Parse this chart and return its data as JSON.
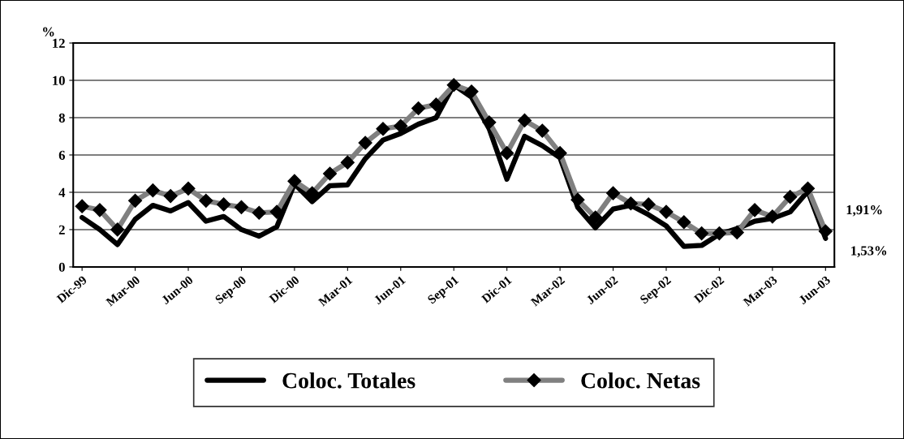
{
  "chart_data": {
    "type": "line",
    "ylabel": "%",
    "categories": [
      "Dic-99",
      null,
      null,
      "Mar-00",
      null,
      null,
      "Jun-00",
      null,
      null,
      "Sep-00",
      null,
      null,
      "Dic-00",
      null,
      null,
      "Mar-01",
      null,
      null,
      "Jun-01",
      null,
      null,
      "Sep-01",
      null,
      null,
      "Dic-01",
      null,
      null,
      "Mar-02",
      null,
      null,
      "Jun-02",
      null,
      null,
      "Sep-02",
      null,
      null,
      "Dic-02",
      null,
      null,
      "Mar-03",
      null,
      null,
      "Jun-03"
    ],
    "series": [
      {
        "name": "Coloc. Totales",
        "color": "#000000",
        "marker": "none",
        "values": [
          2.65,
          2.0,
          1.2,
          2.55,
          3.3,
          3.0,
          3.45,
          2.45,
          2.7,
          2.0,
          1.65,
          2.15,
          4.45,
          3.5,
          4.35,
          4.4,
          5.8,
          6.8,
          7.15,
          7.65,
          8.0,
          9.75,
          9.1,
          7.4,
          4.7,
          7.0,
          6.5,
          5.85,
          3.2,
          2.1,
          3.1,
          3.3,
          2.8,
          2.2,
          1.1,
          1.15,
          1.75,
          2.05,
          2.45,
          2.6,
          2.95,
          4.05,
          1.53
        ]
      },
      {
        "name": "Coloc. Netas",
        "color": "#808080",
        "marker": "diamond",
        "values": [
          3.25,
          3.05,
          2.0,
          3.55,
          4.1,
          3.8,
          4.2,
          3.55,
          3.35,
          3.2,
          2.9,
          2.95,
          4.6,
          3.95,
          5.0,
          5.6,
          6.65,
          7.4,
          7.55,
          8.5,
          8.7,
          9.75,
          9.4,
          7.75,
          6.1,
          7.85,
          7.3,
          6.1,
          3.6,
          2.65,
          3.95,
          3.4,
          3.35,
          2.95,
          2.4,
          1.8,
          1.8,
          1.85,
          3.05,
          2.7,
          3.75,
          4.2,
          1.91
        ]
      }
    ],
    "annotations": [
      {
        "text": "1,91%",
        "x": "Jun-03",
        "y": 1.91
      },
      {
        "text": "1,53%",
        "x": "Jun-03",
        "y": 1.53
      }
    ],
    "ylim": [
      0,
      12
    ],
    "yticks": [
      0,
      2,
      4,
      6,
      8,
      10,
      12
    ],
    "grid": "y",
    "legend": "bottom",
    "line_style": "solid"
  }
}
